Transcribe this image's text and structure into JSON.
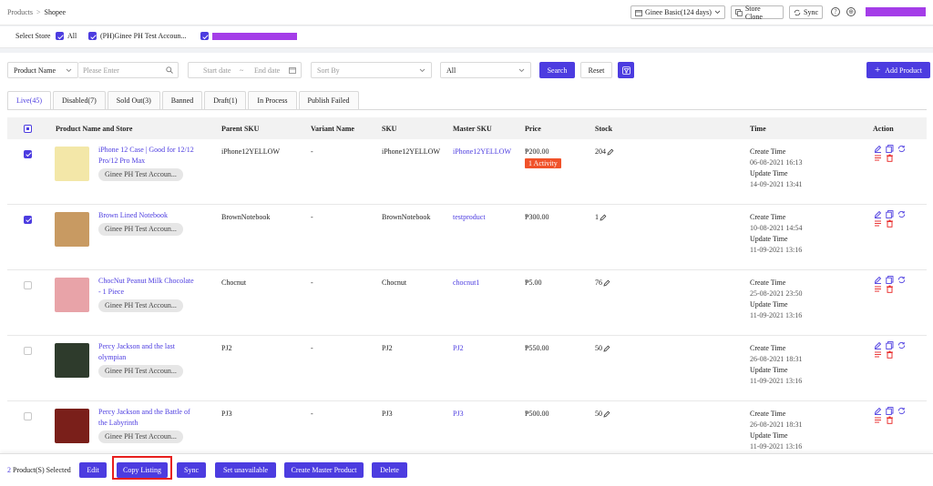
{
  "breadcrumb": {
    "parent": "Products",
    "separator": ">",
    "current": "Shopee"
  },
  "header": {
    "plan_label": "Ginee Basic(124 days)",
    "store_clone_label": "Store Clone",
    "sync_label": "Sync"
  },
  "store_bar": {
    "label": "Select Store",
    "all_label": "All",
    "store1_label": "(PH)Ginee PH Test Accoun..."
  },
  "filters": {
    "field_select": "Product Name",
    "search_placeholder": "Please Enter",
    "start_date_placeholder": "Start date",
    "date_separator": "~",
    "end_date_placeholder": "End date",
    "sort_placeholder": "Sort By",
    "status_select": "All",
    "search_label": "Search",
    "reset_label": "Reset",
    "add_product_label": "Add Product"
  },
  "tabs": [
    {
      "label": "Live(45)"
    },
    {
      "label": "Disabled(7)"
    },
    {
      "label": "Sold Out(3)"
    },
    {
      "label": "Banned"
    },
    {
      "label": "Draft(1)"
    },
    {
      "label": "In Process"
    },
    {
      "label": "Publish Failed"
    }
  ],
  "columns": {
    "name": "Product Name and Store",
    "parent_sku": "Parent SKU",
    "variant": "Variant Name",
    "sku": "SKU",
    "master_sku": "Master SKU",
    "price": "Price",
    "stock": "Stock",
    "time": "Time",
    "action": "Action"
  },
  "time_labels": {
    "create": "Create Time",
    "update": "Update Time"
  },
  "rows": [
    {
      "name": "iPhone 12 Case | Good for 12/12 Pro/12 Pro Max",
      "store": "Ginee PH Test Accoun...",
      "parent_sku": "iPhone12YELLOW",
      "variant": "-",
      "sku": "iPhone12YELLOW",
      "master_sku": "iPhone12YELLOW",
      "price": "₱200.00",
      "activity": "1 Activity",
      "stock": "204",
      "create_time": "06-08-2021 16:13",
      "update_time": "14-09-2021 13:41",
      "checked": true,
      "thumb_color": "#f3e7a8"
    },
    {
      "name": "Brown Lined Notebook",
      "store": "Ginee PH Test Accoun...",
      "parent_sku": "BrownNotebook",
      "variant": "-",
      "sku": "BrownNotebook",
      "master_sku": "testproduct",
      "price": "₱300.00",
      "activity": "",
      "stock": "1",
      "create_time": "10-08-2021 14:54",
      "update_time": "11-09-2021 13:16",
      "checked": true,
      "thumb_color": "#c89a62"
    },
    {
      "name": "ChocNut Peanut Milk Chocolate - 1 Piece",
      "store": "Ginee PH Test Accoun...",
      "parent_sku": "Chocnut",
      "variant": "-",
      "sku": "Chocnut",
      "master_sku": "chocnut1",
      "price": "₱5.00",
      "activity": "",
      "stock": "76",
      "create_time": "25-08-2021 23:50",
      "update_time": "11-09-2021 13:16",
      "checked": false,
      "thumb_color": "#e8a3a8"
    },
    {
      "name": "Percy Jackson and the last olympian",
      "store": "Ginee PH Test Accoun...",
      "parent_sku": "PJ2",
      "variant": "-",
      "sku": "PJ2",
      "master_sku": "PJ2",
      "price": "₱550.00",
      "activity": "",
      "stock": "50",
      "create_time": "26-08-2021 18:31",
      "update_time": "11-09-2021 13:16",
      "checked": false,
      "thumb_color": "#2e3b2c"
    },
    {
      "name": "Percy Jackson and the Battle of the Labyrinth",
      "store": "Ginee PH Test Accoun...",
      "parent_sku": "PJ3",
      "variant": "-",
      "sku": "PJ3",
      "master_sku": "PJ3",
      "price": "₱500.00",
      "activity": "",
      "stock": "50",
      "create_time": "26-08-2021 18:31",
      "update_time": "11-09-2021 13:16",
      "checked": false,
      "thumb_color": "#7a1f1a"
    }
  ],
  "bottom_bar": {
    "selected_count": "2",
    "selected_text": "Product(S) Selected",
    "edit_label": "Edit",
    "copy_listing_label": "Copy Listing",
    "sync_label": "Sync",
    "set_unavailable_label": "Set unavailable",
    "create_master_label": "Create Master Product",
    "delete_label": "Delete"
  },
  "colors": {
    "primary": "#4c3ce0",
    "danger": "#e8201e",
    "activity": "#f0522a",
    "redacted": "#a43de8"
  }
}
